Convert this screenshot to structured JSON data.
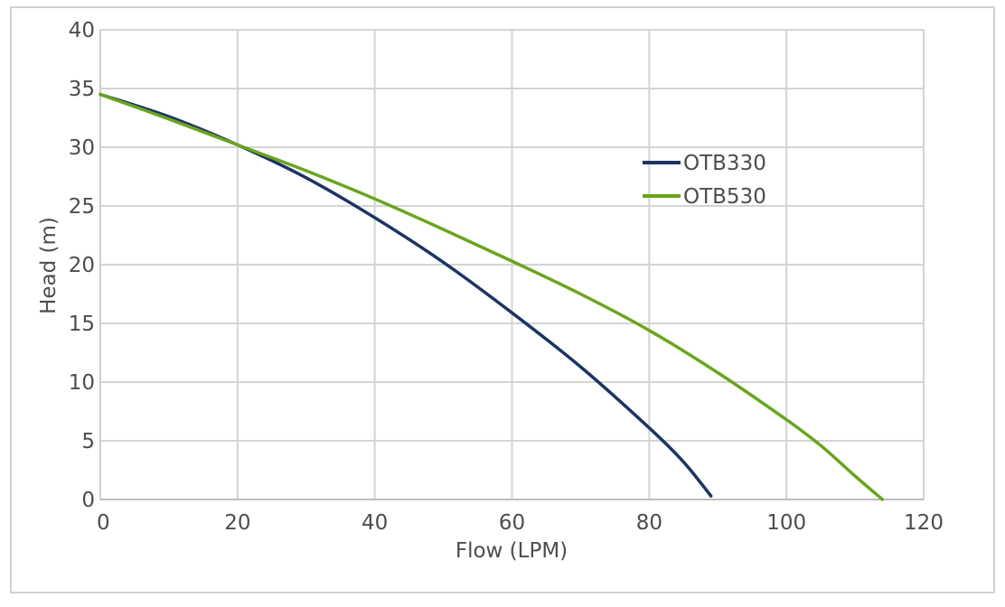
{
  "chart_data": {
    "type": "line",
    "title": "",
    "xlabel": "Flow (LPM)",
    "ylabel": "Head (m)",
    "xlim": [
      0,
      120
    ],
    "ylim": [
      0,
      40
    ],
    "x_ticks": [
      "0",
      "20",
      "40",
      "60",
      "80",
      "100",
      "120"
    ],
    "y_ticks": [
      "0",
      "5",
      "10",
      "15",
      "20",
      "25",
      "30",
      "35",
      "40"
    ],
    "grid": true,
    "legend_position": "right",
    "series": [
      {
        "name": "OTB330",
        "color": "#1b3463",
        "points": [
          [
            0,
            34.5
          ],
          [
            10,
            32.6
          ],
          [
            20,
            30.2
          ],
          [
            30,
            27.4
          ],
          [
            40,
            24.0
          ],
          [
            50,
            20.2
          ],
          [
            60,
            15.9
          ],
          [
            70,
            11.3
          ],
          [
            80,
            6.1
          ],
          [
            85,
            3.2
          ],
          [
            89,
            0.3
          ]
        ]
      },
      {
        "name": "OTB530",
        "color": "#6aa51e",
        "points": [
          [
            0,
            34.5
          ],
          [
            10,
            32.4
          ],
          [
            20,
            30.2
          ],
          [
            30,
            28.0
          ],
          [
            40,
            25.6
          ],
          [
            50,
            23.0
          ],
          [
            60,
            20.3
          ],
          [
            70,
            17.5
          ],
          [
            80,
            14.4
          ],
          [
            90,
            10.8
          ],
          [
            100,
            6.8
          ],
          [
            105,
            4.6
          ],
          [
            110,
            2.0
          ],
          [
            114,
            0.0
          ]
        ]
      }
    ]
  }
}
